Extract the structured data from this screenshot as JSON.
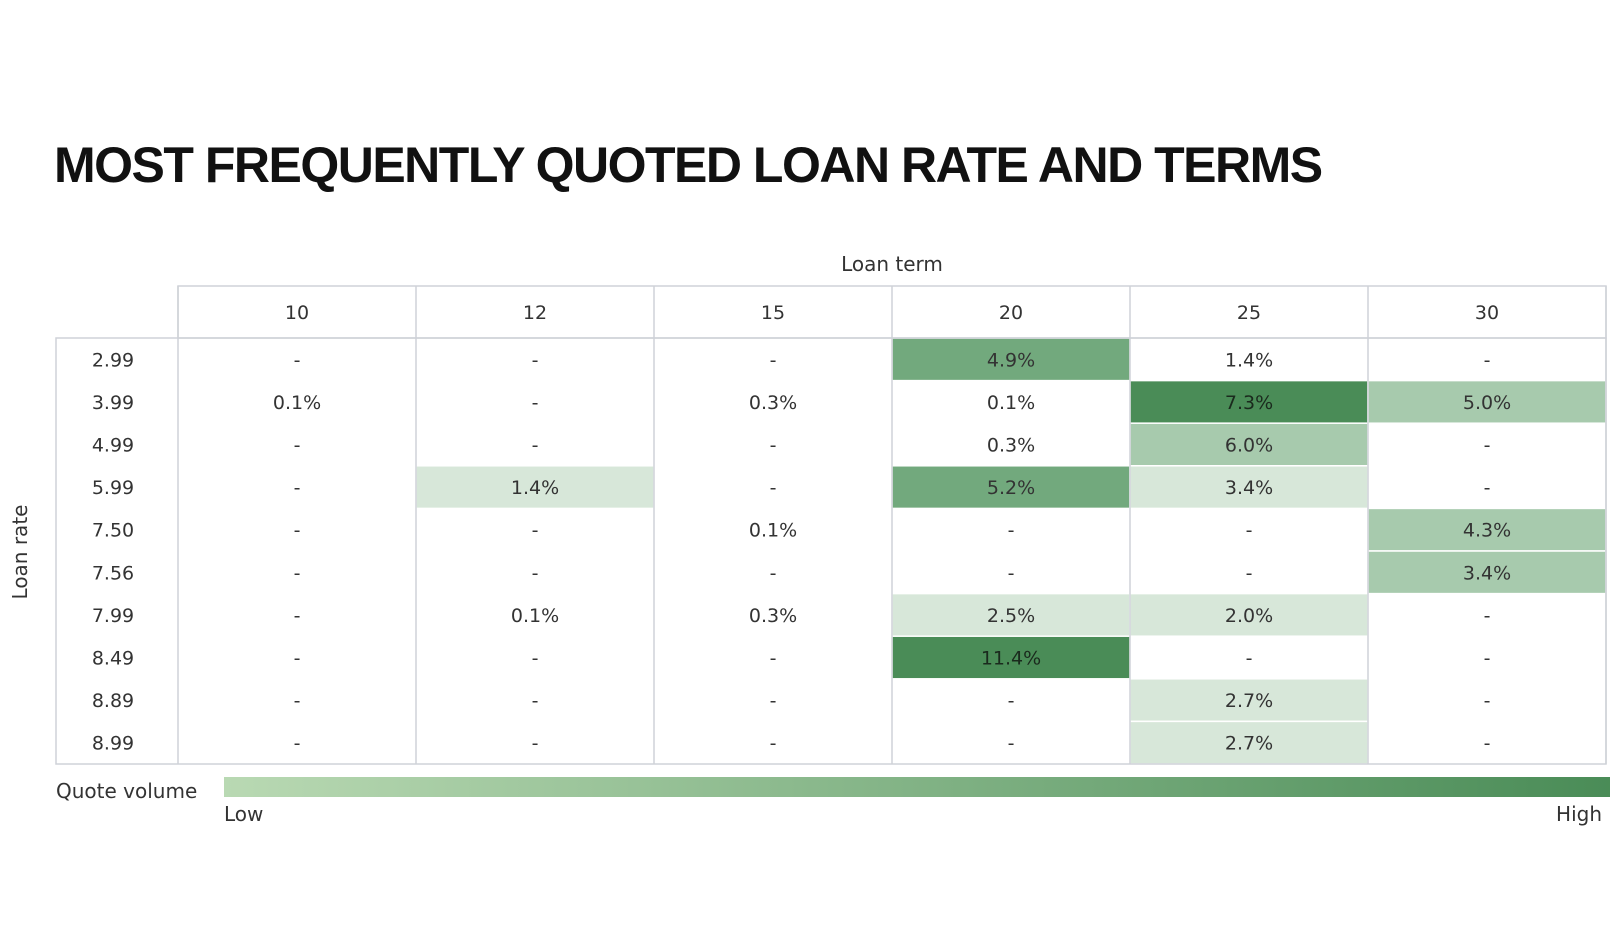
{
  "chart_data": {
    "type": "heatmap",
    "title": "MOST FREQUENTLY QUOTED LOAN RATE AND TERMS",
    "xlabel": "Loan term",
    "ylabel": "Loan rate",
    "x_categories": [
      "10",
      "12",
      "15",
      "20",
      "25",
      "30"
    ],
    "y_categories": [
      "2.99",
      "3.99",
      "4.99",
      "5.99",
      "7.50",
      "7.56",
      "7.99",
      "8.49",
      "8.89",
      "8.99"
    ],
    "cells": [
      [
        "-",
        "-",
        "-",
        "4.9%",
        "1.4%",
        "-"
      ],
      [
        "0.1%",
        "-",
        "0.3%",
        "0.1%",
        "7.3%",
        "5.0%"
      ],
      [
        "-",
        "-",
        "-",
        "0.3%",
        "6.0%",
        "-"
      ],
      [
        "-",
        "1.4%",
        "-",
        "5.2%",
        "3.4%",
        "-"
      ],
      [
        "-",
        "-",
        "0.1%",
        "-",
        "-",
        "4.3%"
      ],
      [
        "-",
        "-",
        "-",
        "-",
        "-",
        "3.4%"
      ],
      [
        "-",
        "0.1%",
        "0.3%",
        "2.5%",
        "2.0%",
        "-"
      ],
      [
        "-",
        "-",
        "-",
        "11.4%",
        "-",
        "-"
      ],
      [
        "-",
        "-",
        "-",
        "-",
        "2.7%",
        "-"
      ],
      [
        "-",
        "-",
        "-",
        "-",
        "2.7%",
        "-"
      ]
    ],
    "cell_fills": [
      [
        "#ffffff",
        "#ffffff",
        "#ffffff",
        "#72a97d",
        "#ffffff",
        "#ffffff"
      ],
      [
        "#ffffff",
        "#ffffff",
        "#ffffff",
        "#ffffff",
        "#4a8c57",
        "#a7caad"
      ],
      [
        "#ffffff",
        "#ffffff",
        "#ffffff",
        "#ffffff",
        "#a7caad",
        "#ffffff"
      ],
      [
        "#ffffff",
        "#d7e7d9",
        "#ffffff",
        "#72a97d",
        "#d7e7d9",
        "#ffffff"
      ],
      [
        "#ffffff",
        "#ffffff",
        "#ffffff",
        "#ffffff",
        "#ffffff",
        "#a7caad"
      ],
      [
        "#ffffff",
        "#ffffff",
        "#ffffff",
        "#ffffff",
        "#ffffff",
        "#a7caad"
      ],
      [
        "#ffffff",
        "#ffffff",
        "#ffffff",
        "#d7e7d9",
        "#d7e7d9",
        "#ffffff"
      ],
      [
        "#ffffff",
        "#ffffff",
        "#ffffff",
        "#4a8c57",
        "#ffffff",
        "#ffffff"
      ],
      [
        "#ffffff",
        "#ffffff",
        "#ffffff",
        "#ffffff",
        "#d7e7d9",
        "#ffffff"
      ],
      [
        "#ffffff",
        "#ffffff",
        "#ffffff",
        "#ffffff",
        "#d7e7d9",
        "#ffffff"
      ]
    ],
    "legend": {
      "title": "Quote volume",
      "low_label": "Low",
      "high_label": "High",
      "low_color": "#b9d9b3",
      "high_color": "#4a8c57"
    },
    "grid": true
  },
  "colors": {
    "grid_line": "#cfd2d8",
    "text": "#333333"
  }
}
